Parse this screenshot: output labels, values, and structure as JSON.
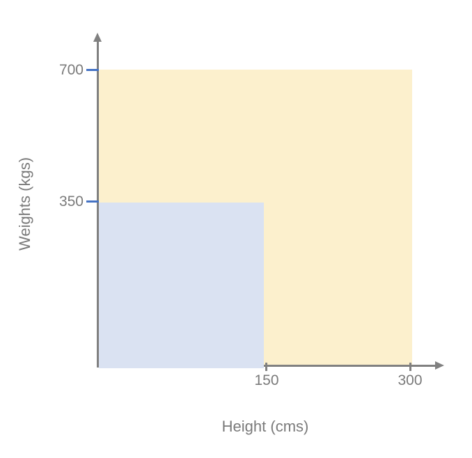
{
  "chart_data": {
    "type": "area",
    "title": "",
    "xlabel": "Height (cms)",
    "ylabel": "Weights (kgs)",
    "x_ticks": [
      150,
      300
    ],
    "y_ticks": [
      350,
      700
    ],
    "xlim": [
      0,
      330
    ],
    "ylim": [
      0,
      780
    ],
    "grid": false,
    "legend": "none",
    "regions": [
      {
        "name": "outer-region",
        "x_range": [
          0,
          300
        ],
        "y_range": [
          0,
          700
        ],
        "color": "#FCF0CD"
      },
      {
        "name": "inner-region",
        "x_range": [
          0,
          150
        ],
        "y_range": [
          0,
          350
        ],
        "color": "#DAE2F2"
      }
    ]
  },
  "labels": {
    "y_axis_title": "Weights (kgs)",
    "x_axis_title": "Height (cms)",
    "y_tick_700": "700",
    "y_tick_350": "350",
    "x_tick_150": "150",
    "x_tick_300": "300"
  },
  "colors": {
    "outer_region_fill": "#FCF0CD",
    "inner_region_fill": "#DAE2F2",
    "axis_line": "#808080",
    "y_tick_mark": "#4472C4",
    "x_tick_mark": "#808080",
    "text": "#7A7A7A",
    "background": "#FFFFFF"
  }
}
